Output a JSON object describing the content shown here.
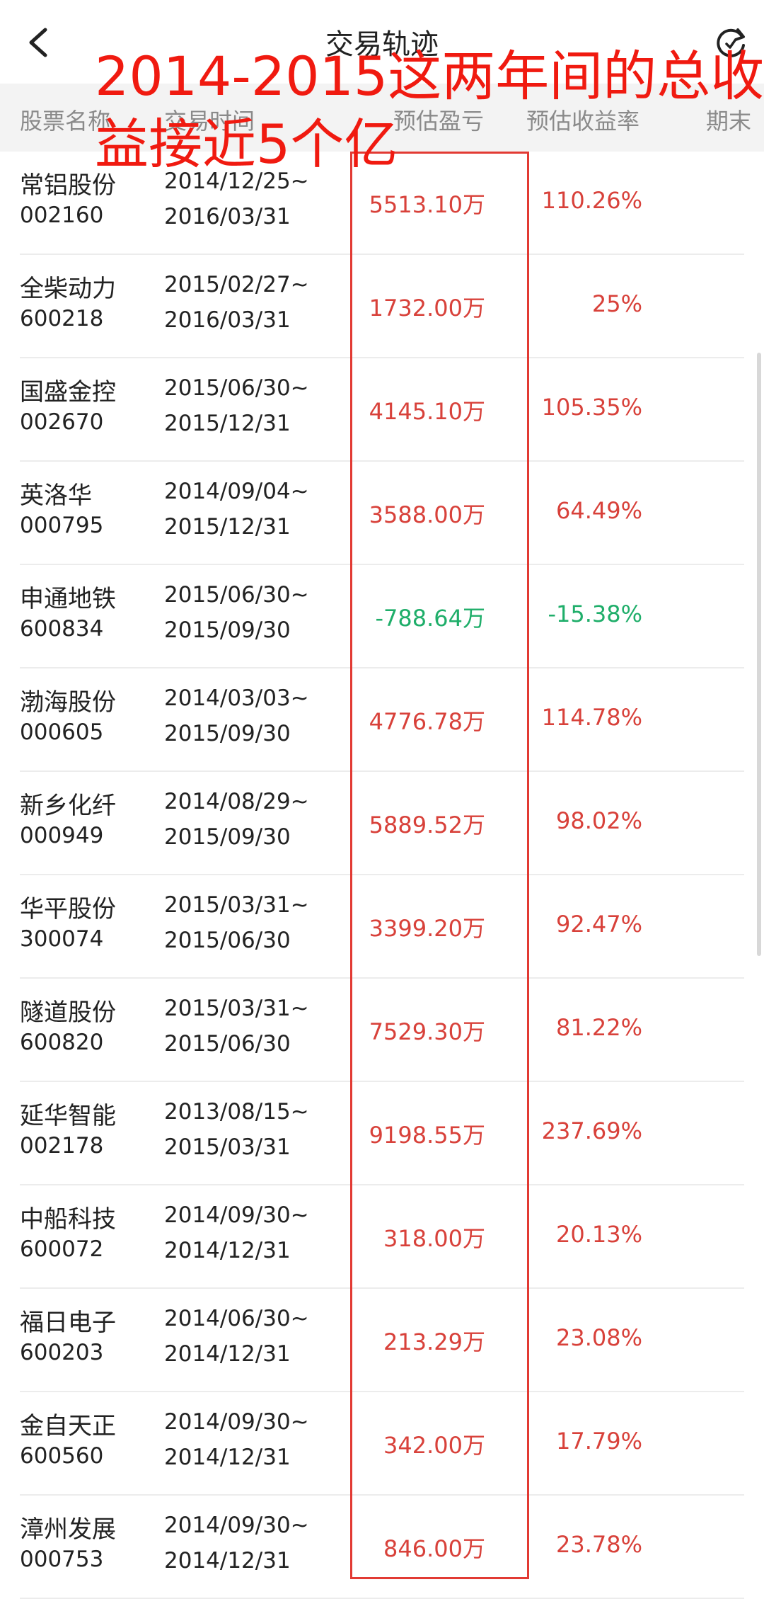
{
  "app": {
    "title": "交易轨迹"
  },
  "table": {
    "headers": [
      "股票名称",
      "交易时间",
      "预估盈亏",
      "预估收益率",
      "期末"
    ],
    "rows": [
      {
        "name": "常铝股份",
        "code": "002160",
        "start": "2014/12/25~",
        "end": "2016/03/31",
        "pnl": "5513.10万",
        "rate": "110.26%",
        "negative": false
      },
      {
        "name": "全柴动力",
        "code": "600218",
        "start": "2015/02/27~",
        "end": "2016/03/31",
        "pnl": "1732.00万",
        "rate": "25%",
        "negative": false
      },
      {
        "name": "国盛金控",
        "code": "002670",
        "start": "2015/06/30~",
        "end": "2015/12/31",
        "pnl": "4145.10万",
        "rate": "105.35%",
        "negative": false
      },
      {
        "name": "英洛华",
        "code": "000795",
        "start": "2014/09/04~",
        "end": "2015/12/31",
        "pnl": "3588.00万",
        "rate": "64.49%",
        "negative": false
      },
      {
        "name": "申通地铁",
        "code": "600834",
        "start": "2015/06/30~",
        "end": "2015/09/30",
        "pnl": "-788.64万",
        "rate": "-15.38%",
        "negative": true
      },
      {
        "name": "渤海股份",
        "code": "000605",
        "start": "2014/03/03~",
        "end": "2015/09/30",
        "pnl": "4776.78万",
        "rate": "114.78%",
        "negative": false
      },
      {
        "name": "新乡化纤",
        "code": "000949",
        "start": "2014/08/29~",
        "end": "2015/09/30",
        "pnl": "5889.52万",
        "rate": "98.02%",
        "negative": false
      },
      {
        "name": "华平股份",
        "code": "300074",
        "start": "2015/03/31~",
        "end": "2015/06/30",
        "pnl": "3399.20万",
        "rate": "92.47%",
        "negative": false
      },
      {
        "name": "隧道股份",
        "code": "600820",
        "start": "2015/03/31~",
        "end": "2015/06/30",
        "pnl": "7529.30万",
        "rate": "81.22%",
        "negative": false
      },
      {
        "name": "延华智能",
        "code": "002178",
        "start": "2013/08/15~",
        "end": "2015/03/31",
        "pnl": "9198.55万",
        "rate": "237.69%",
        "negative": false
      },
      {
        "name": "中船科技",
        "code": "600072",
        "start": "2014/09/30~",
        "end": "2014/12/31",
        "pnl": "318.00万",
        "rate": "20.13%",
        "negative": false
      },
      {
        "name": "福日电子",
        "code": "600203",
        "start": "2014/06/30~",
        "end": "2014/12/31",
        "pnl": "213.29万",
        "rate": "23.08%",
        "negative": false
      },
      {
        "name": "金自天正",
        "code": "600560",
        "start": "2014/09/30~",
        "end": "2014/12/31",
        "pnl": "342.00万",
        "rate": "17.79%",
        "negative": false
      },
      {
        "name": "漳州发展",
        "code": "000753",
        "start": "2014/09/30~",
        "end": "2014/12/31",
        "pnl": "846.00万",
        "rate": "23.78%",
        "negative": false
      }
    ]
  },
  "annotation": {
    "line1": "2014-2015这两年间的总收",
    "line2": "益接近5个亿"
  },
  "icons": {
    "back": "chevron-left-icon",
    "refresh": "refresh-icon"
  },
  "colors": {
    "positive": "#d8413a",
    "negative": "#1fae6a",
    "annotation": "#f01a10"
  }
}
